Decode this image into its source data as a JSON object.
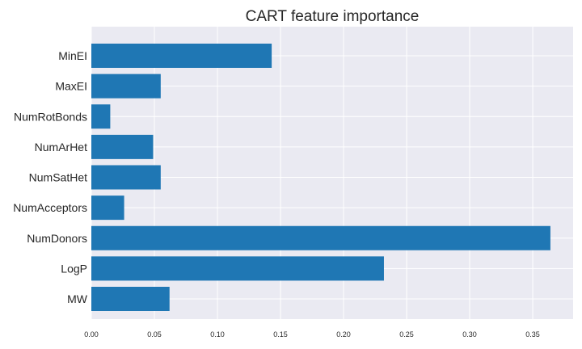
{
  "chart_data": {
    "type": "bar",
    "orientation": "horizontal",
    "title": "CART feature importance",
    "xlabel": "",
    "ylabel": "",
    "categories": [
      "MW",
      "LogP",
      "NumDonors",
      "NumAcceptors",
      "NumSatHet",
      "NumArHet",
      "NumRotBonds",
      "MaxEI",
      "MinEI"
    ],
    "values": [
      0.062,
      0.232,
      0.364,
      0.026,
      0.055,
      0.049,
      0.015,
      0.055,
      0.143
    ],
    "xlim": [
      0,
      0.382
    ],
    "xticks": [
      "0.00",
      "0.05",
      "0.10",
      "0.15",
      "0.20",
      "0.25",
      "0.30",
      "0.35"
    ],
    "grid": true,
    "bar_color": "#1f77b4",
    "background_color": "#eaeaf2"
  }
}
